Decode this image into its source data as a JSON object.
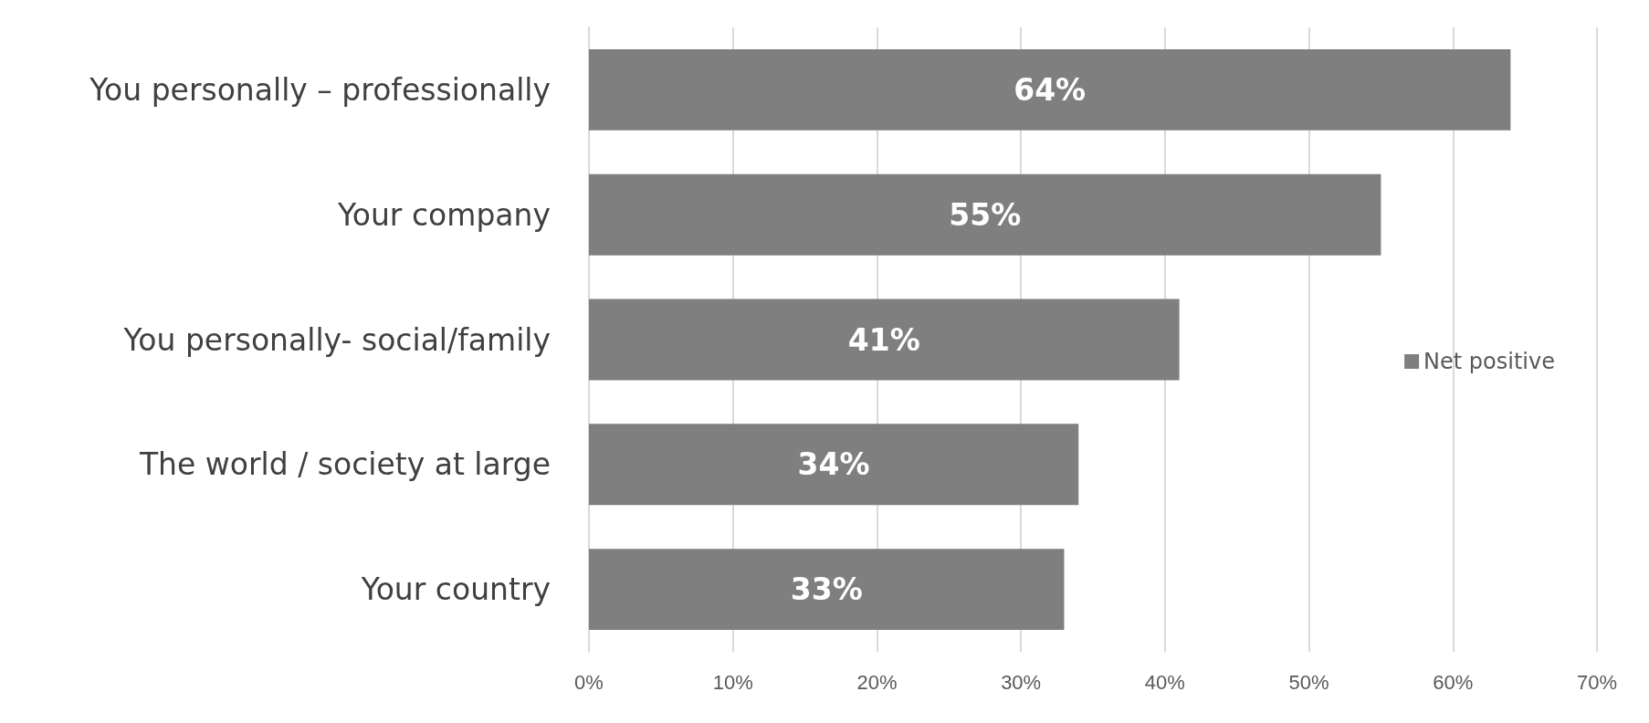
{
  "chart_data": {
    "type": "bar",
    "orientation": "horizontal",
    "categories": [
      "You personally – professionally",
      "Your company",
      "You personally- social/family",
      "The world / society at large",
      "Your country"
    ],
    "series": [
      {
        "name": "Net positive",
        "color": "#7f7f7f",
        "values": [
          64,
          55,
          41,
          34,
          33
        ],
        "value_labels": [
          "64%",
          "55%",
          "41%",
          "34%",
          "33%"
        ]
      }
    ],
    "xlim": [
      0,
      70
    ],
    "xticks": [
      {
        "value": 0,
        "label": "0%"
      },
      {
        "value": 10,
        "label": "10%"
      },
      {
        "value": 20,
        "label": "20%"
      },
      {
        "value": 30,
        "label": "30%"
      },
      {
        "value": 40,
        "label": "40%"
      },
      {
        "value": 50,
        "label": "50%"
      },
      {
        "value": 60,
        "label": "60%"
      },
      {
        "value": 70,
        "label": "70%"
      }
    ],
    "grid": "x",
    "legend": "right"
  }
}
